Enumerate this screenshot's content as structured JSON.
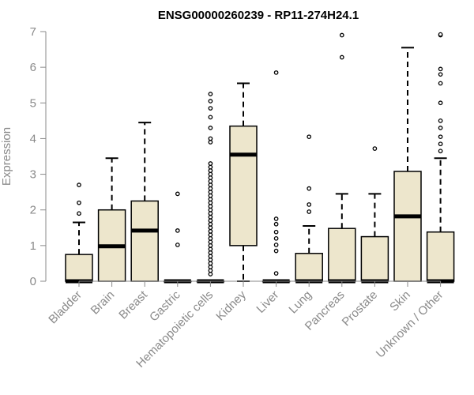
{
  "chart_data": {
    "type": "box",
    "title": "ENSG00000260239 - RP11-274H24.1",
    "ylabel": "Expression",
    "xlabel": "",
    "ylim": [
      0,
      7
    ],
    "yticks": [
      0,
      1,
      2,
      3,
      4,
      5,
      6,
      7
    ],
    "colors": {
      "box_fill": "#ede6cc",
      "outline": "#000000",
      "axis": "#8a8a8a"
    },
    "categories": [
      "Bladder",
      "Brain",
      "Breast",
      "Gastric",
      "Hematopoietic cells",
      "Kidney",
      "Liver",
      "Lung",
      "Pancreas",
      "Prostate",
      "Skin",
      "Unknown / Other"
    ],
    "boxes": [
      {
        "category": "Bladder",
        "whisker_low": 0,
        "q1": 0,
        "median": 0,
        "q3": 0.75,
        "whisker_high": 1.65,
        "outliers": [
          1.9,
          2.2,
          2.7
        ]
      },
      {
        "category": "Brain",
        "whisker_low": 0,
        "q1": 0,
        "median": 0.98,
        "q3": 2.0,
        "whisker_high": 3.45,
        "outliers": []
      },
      {
        "category": "Breast",
        "whisker_low": 0,
        "q1": 0,
        "median": 1.42,
        "q3": 2.25,
        "whisker_high": 4.45,
        "outliers": []
      },
      {
        "category": "Gastric",
        "whisker_low": 0,
        "q1": 0,
        "median": 0,
        "q3": 0,
        "whisker_high": 0,
        "outliers": [
          1.02,
          1.42,
          2.45
        ]
      },
      {
        "category": "Hematopoietic cells",
        "whisker_low": 0,
        "q1": 0,
        "median": 0,
        "q3": 0,
        "whisker_high": 0,
        "outliers": [
          0.2,
          0.3,
          0.4,
          0.5,
          0.6,
          0.7,
          0.8,
          0.9,
          1.0,
          1.1,
          1.2,
          1.3,
          1.4,
          1.5,
          1.6,
          1.7,
          1.8,
          1.9,
          2.0,
          2.1,
          2.2,
          2.3,
          2.4,
          2.5,
          2.6,
          2.7,
          2.8,
          2.9,
          3.0,
          3.1,
          3.2,
          3.3,
          3.9,
          4.0,
          4.3,
          4.6,
          4.85,
          5.05,
          5.25
        ]
      },
      {
        "category": "Kidney",
        "whisker_low": 0,
        "q1": 1.0,
        "median": 3.55,
        "q3": 4.35,
        "whisker_high": 5.55,
        "outliers": []
      },
      {
        "category": "Liver",
        "whisker_low": 0,
        "q1": 0,
        "median": 0,
        "q3": 0,
        "whisker_high": 0,
        "outliers": [
          0.22,
          0.85,
          1.02,
          1.2,
          1.38,
          1.6,
          1.75,
          5.85
        ]
      },
      {
        "category": "Lung",
        "whisker_low": 0,
        "q1": 0,
        "median": 0,
        "q3": 0.78,
        "whisker_high": 1.55,
        "outliers": [
          1.95,
          2.15,
          2.6,
          4.05
        ]
      },
      {
        "category": "Pancreas",
        "whisker_low": 0,
        "q1": 0,
        "median": 0,
        "q3": 1.48,
        "whisker_high": 2.45,
        "outliers": [
          6.28,
          6.9
        ]
      },
      {
        "category": "Prostate",
        "whisker_low": 0,
        "q1": 0,
        "median": 0,
        "q3": 1.25,
        "whisker_high": 2.45,
        "outliers": [
          3.72
        ]
      },
      {
        "category": "Skin",
        "whisker_low": 0,
        "q1": 0,
        "median": 1.82,
        "q3": 3.08,
        "whisker_high": 6.55,
        "outliers": []
      },
      {
        "category": "Unknown / Other",
        "whisker_low": 0,
        "q1": 0,
        "median": 0,
        "q3": 1.38,
        "whisker_high": 3.45,
        "outliers": [
          3.65,
          3.85,
          4.05,
          4.3,
          4.5,
          5.0,
          5.55,
          5.8,
          5.95,
          6.9,
          6.92
        ]
      }
    ]
  }
}
